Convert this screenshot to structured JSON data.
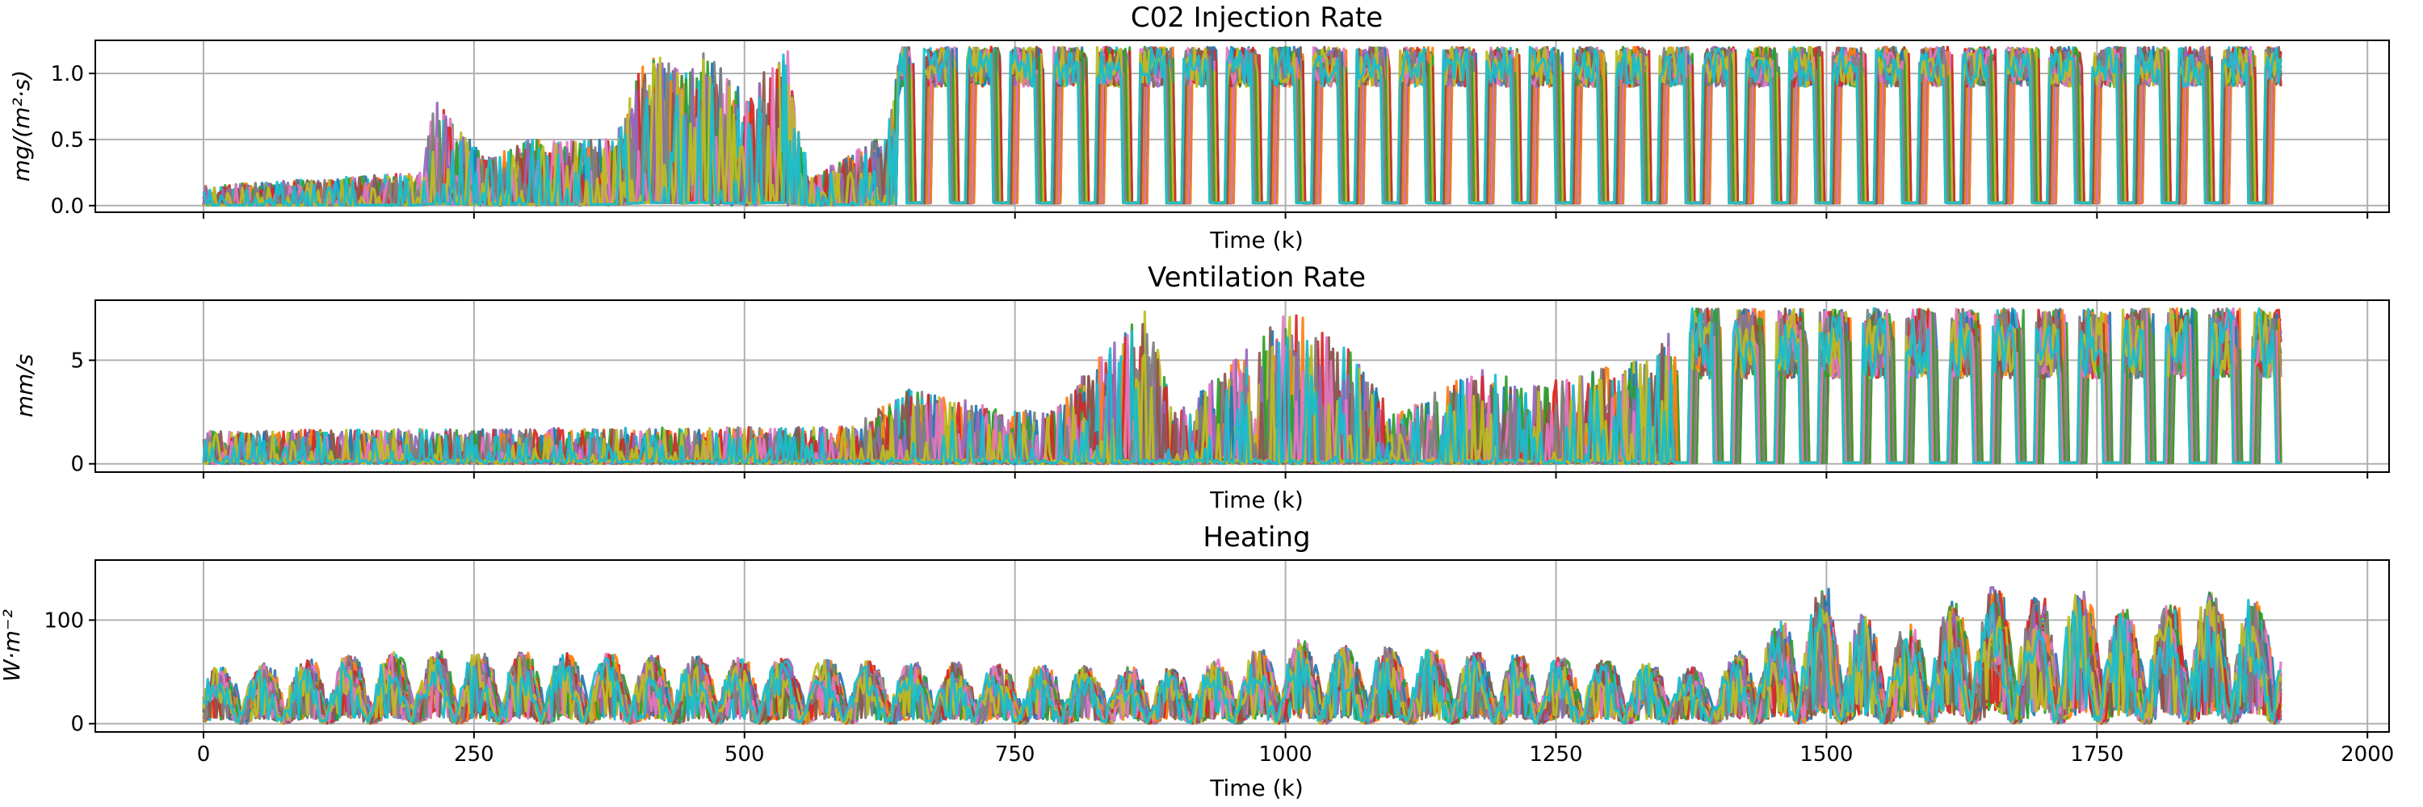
{
  "chart_data": [
    {
      "type": "line",
      "title": "C02 Injection Rate",
      "xlabel": "Time (k)",
      "ylabel": "mg/(m²·s)",
      "xlim": [
        -100,
        2020
      ],
      "ylim": [
        -0.05,
        1.25
      ],
      "xticks": [
        0,
        250,
        500,
        750,
        1000,
        1250,
        1500,
        1750,
        2000
      ],
      "xtick_labels_visible": false,
      "yticks": [
        0.0,
        0.5,
        1.0
      ],
      "ytick_labels": [
        "0.0",
        "0.5",
        "1.0"
      ],
      "grid": true,
      "x_range": [
        0,
        1920
      ],
      "peak": 1.2,
      "profile": [
        [
          0,
          0.15
        ],
        [
          200,
          0.25
        ],
        [
          215,
          0.85
        ],
        [
          260,
          0.35
        ],
        [
          300,
          0.5
        ],
        [
          380,
          0.5
        ],
        [
          410,
          1.2
        ],
        [
          445,
          1.0
        ],
        [
          460,
          1.2
        ],
        [
          500,
          0.85
        ],
        [
          540,
          1.2
        ],
        [
          560,
          0.2
        ],
        [
          630,
          0.55
        ],
        [
          645,
          1.2
        ],
        [
          900,
          1.2
        ],
        [
          1920,
          1.2
        ]
      ]
    },
    {
      "type": "line",
      "title": "Ventilation Rate",
      "xlabel": "Time (k)",
      "ylabel": "mm/s",
      "xlim": [
        -100,
        2020
      ],
      "ylim": [
        -0.4,
        7.9
      ],
      "xticks": [
        0,
        250,
        500,
        750,
        1000,
        1250,
        1500,
        1750,
        2000
      ],
      "xtick_labels_visible": false,
      "yticks": [
        0,
        5
      ],
      "ytick_labels": [
        "0",
        "5"
      ],
      "grid": true,
      "x_range": [
        0,
        1920
      ],
      "peak": 7.5,
      "profile": [
        [
          0,
          1.6
        ],
        [
          600,
          1.8
        ],
        [
          650,
          3.6
        ],
        [
          780,
          2.5
        ],
        [
          870,
          7.5
        ],
        [
          900,
          2.5
        ],
        [
          1005,
          7.5
        ],
        [
          1030,
          6.5
        ],
        [
          1060,
          5.5
        ],
        [
          1100,
          2.5
        ],
        [
          1180,
          4.6
        ],
        [
          1230,
          3.8
        ],
        [
          1340,
          5.2
        ],
        [
          1370,
          7.5
        ],
        [
          1920,
          7.5
        ]
      ]
    },
    {
      "type": "line",
      "title": "Heating",
      "xlabel": "Time (k)",
      "ylabel": "W·m⁻²",
      "xlim": [
        -100,
        2020
      ],
      "ylim": [
        -8,
        158
      ],
      "xticks": [
        0,
        250,
        500,
        750,
        1000,
        1250,
        1500,
        1750,
        2000
      ],
      "xtick_labels": [
        "0",
        "250",
        "500",
        "750",
        "1000",
        "1250",
        "1500",
        "1750",
        "2000"
      ],
      "xtick_labels_visible": true,
      "yticks": [
        0,
        100
      ],
      "ytick_labels": [
        "0",
        "100"
      ],
      "grid": true,
      "x_range": [
        0,
        1920
      ],
      "peak": 150,
      "profile": [
        [
          0,
          60
        ],
        [
          200,
          80
        ],
        [
          900,
          60
        ],
        [
          1010,
          90
        ],
        [
          1400,
          60
        ],
        [
          1500,
          150
        ],
        [
          1560,
          100
        ],
        [
          1650,
          150
        ],
        [
          1700,
          140
        ],
        [
          1750,
          145
        ],
        [
          1800,
          110
        ],
        [
          1830,
          150
        ],
        [
          1920,
          130
        ]
      ]
    }
  ],
  "colors": [
    "#1f77b4",
    "#ff7f0e",
    "#2ca02c",
    "#d62728",
    "#9467bd",
    "#8c564b",
    "#e377c2",
    "#7f7f7f",
    "#bcbd22",
    "#17becf"
  ]
}
